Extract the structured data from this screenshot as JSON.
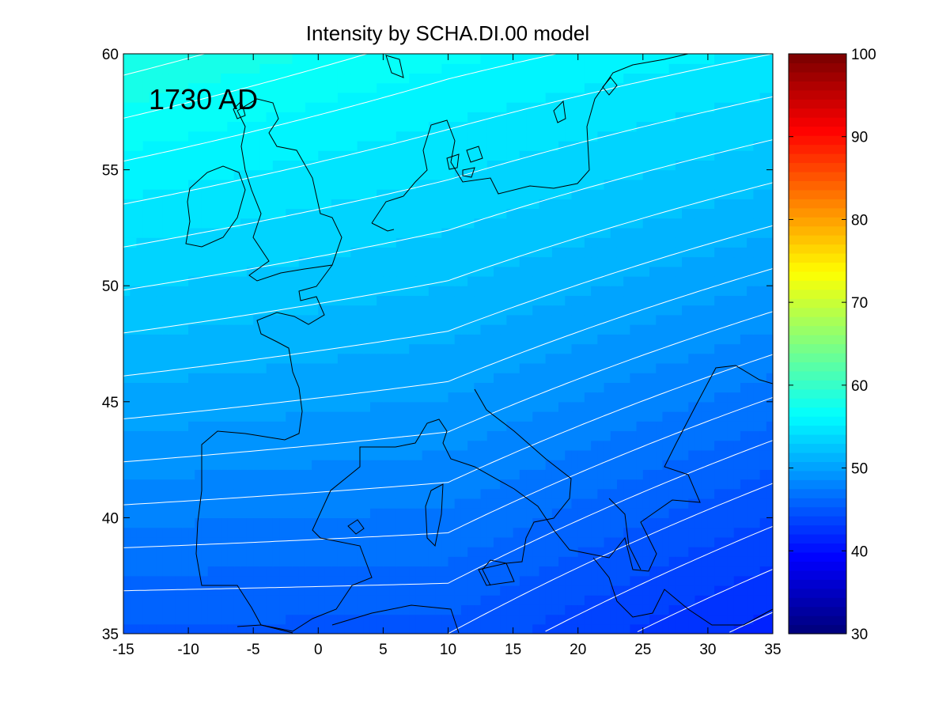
{
  "chart_data": {
    "type": "heatmap",
    "title": "Intensity by SCHA.DI.00 model",
    "annotation": "1730 AD",
    "xlabel": "",
    "ylabel": "",
    "xlim": [
      -15,
      35
    ],
    "ylim": [
      35,
      60
    ],
    "x_ticks": [
      -15,
      -10,
      -5,
      0,
      5,
      10,
      15,
      20,
      25,
      30,
      35
    ],
    "y_ticks": [
      35,
      40,
      45,
      50,
      55,
      60
    ],
    "colorbar": {
      "colormap": "jet",
      "range": [
        30,
        100
      ],
      "ticks": [
        30,
        40,
        50,
        60,
        70,
        80,
        90,
        100
      ]
    },
    "contour_step": 1,
    "field_samples": [
      {
        "lon": -15,
        "lat": 60,
        "value": 58.5
      },
      {
        "lon": -15,
        "lat": 35,
        "value": 45.0
      },
      {
        "lon": 10,
        "lat": 60,
        "value": 56.5
      },
      {
        "lon": 10,
        "lat": 35,
        "value": 45.0
      },
      {
        "lon": 35,
        "lat": 60,
        "value": 55.0
      },
      {
        "lon": 35,
        "lat": 35,
        "value": 41.5
      }
    ],
    "overlay": "coastlines",
    "grid": false,
    "legend": "colorbar-right"
  }
}
